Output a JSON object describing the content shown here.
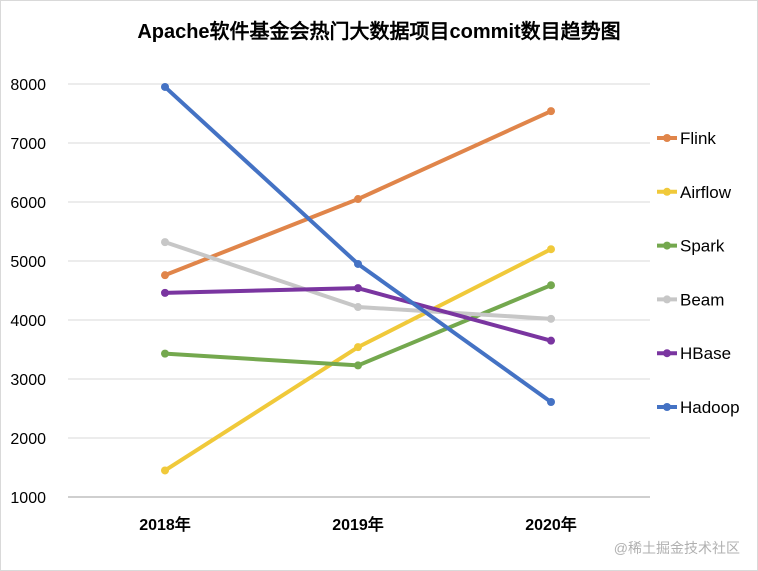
{
  "chart_data": {
    "type": "line",
    "title": "Apache软件基金会热门大数据项目commit数目趋势图",
    "xlabel": "",
    "ylabel": "",
    "categories": [
      "2018年",
      "2019年",
      "2020年"
    ],
    "ylim": [
      1000,
      8000
    ],
    "yticks": [
      1000,
      2000,
      3000,
      4000,
      5000,
      6000,
      7000,
      8000
    ],
    "grid": true,
    "legend_position": "right",
    "series": [
      {
        "name": "Flink",
        "color": "#e0854a",
        "values": [
          4760,
          6050,
          7540
        ]
      },
      {
        "name": "Airflow",
        "color": "#f0c93a",
        "values": [
          1450,
          3540,
          5200
        ]
      },
      {
        "name": "Spark",
        "color": "#74a84e",
        "values": [
          3430,
          3230,
          4590
        ]
      },
      {
        "name": "Beam",
        "color": "#c7c7c7",
        "values": [
          5320,
          4220,
          4020
        ]
      },
      {
        "name": "HBase",
        "color": "#7a35a0",
        "values": [
          4460,
          4540,
          3650
        ]
      },
      {
        "name": "Hadoop",
        "color": "#4472c4",
        "values": [
          7950,
          4950,
          2610
        ]
      }
    ]
  },
  "watermark": "@稀土掘金技术社区"
}
